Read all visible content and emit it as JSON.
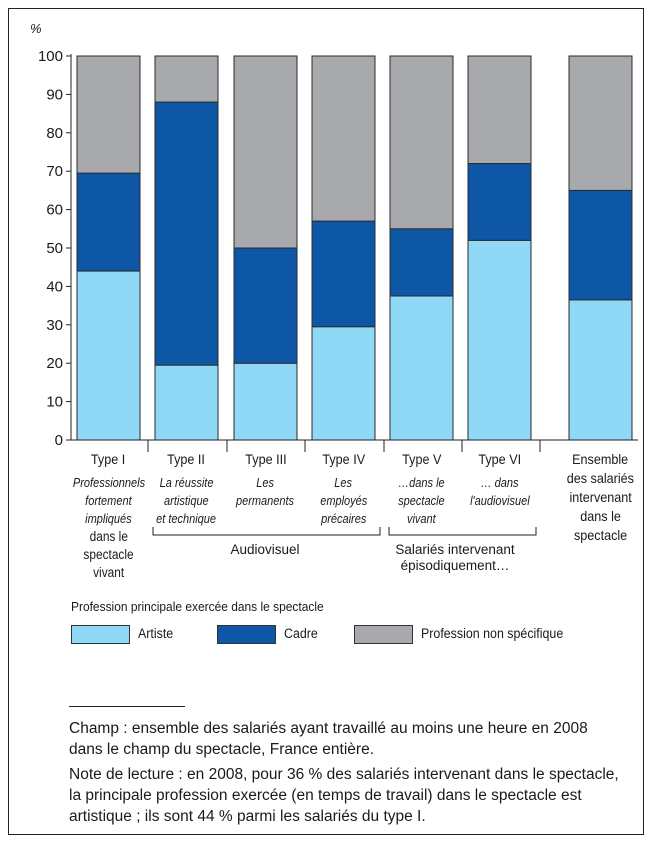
{
  "chart_data": {
    "type": "bar",
    "stacked": true,
    "y_unit": "%",
    "ylim": [
      0,
      100
    ],
    "yticks": [
      "0",
      "10",
      "20",
      "30",
      "40",
      "50",
      "60",
      "70",
      "80",
      "90",
      "100"
    ],
    "categories": [
      {
        "label": "Type I",
        "sub": [
          "Professionnels",
          "fortement",
          "impliqués",
          "dans le",
          "spectacle",
          "vivant"
        ],
        "sub_style": "mixed"
      },
      {
        "label": "Type II",
        "sub": [
          "La réussite",
          "artistique",
          "et technique"
        ],
        "sub_style": "italic"
      },
      {
        "label": "Type III",
        "sub": [
          "Les",
          "permanents"
        ],
        "sub_style": "italic"
      },
      {
        "label": "Type IV",
        "sub": [
          "Les",
          "employés",
          "précaires"
        ],
        "sub_style": "italic"
      },
      {
        "label": "Type V",
        "sub": [
          "…dans le",
          "spectacle",
          "vivant"
        ],
        "sub_style": "italic"
      },
      {
        "label": "Type VI",
        "sub": [
          "… dans",
          "l'audiovisuel"
        ],
        "sub_style": "italic"
      },
      {
        "label": "Ensemble",
        "sub": [
          "des salariés",
          "intervenant",
          "dans le",
          "spectacle"
        ],
        "sub_style": "normal"
      }
    ],
    "series": [
      {
        "name": "Artiste",
        "color": "#8fd8f6",
        "values": [
          44,
          19.5,
          20,
          29.5,
          37.5,
          52,
          36.5
        ]
      },
      {
        "name": "Cadre",
        "color": "#0d57a6",
        "values": [
          25.5,
          68.5,
          30,
          27.5,
          17.5,
          20,
          28.5
        ]
      },
      {
        "name": "Profession non spécifique",
        "color": "#a7a9ac",
        "values": [
          30.5,
          12,
          50,
          43,
          45,
          28,
          35
        ]
      }
    ],
    "brackets": [
      {
        "label": "Audiovisuel"
      },
      {
        "label": "Salariés intervenant\népisodiquement…"
      }
    ],
    "legend_title": "Profession principale exercée dans le spectacle"
  },
  "notes": {
    "champ": "Champ : ensemble des salariés ayant travaillé au moins une heure en 2008 dans le champ du spectacle, France entière.",
    "lecture": "Note de lecture : en 2008, pour 36 % des salariés intervenant dans le spectacle, la principale profession exercée (en temps de travail) dans le spectacle est artistique ; ils sont 44 % parmi les salariés du type I."
  }
}
